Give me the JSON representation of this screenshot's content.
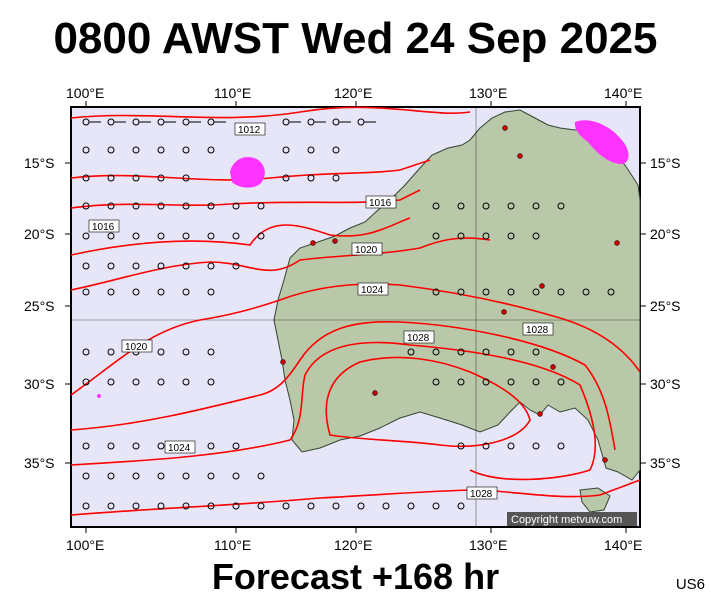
{
  "title": "0800 AWST Wed 24 Sep 2025",
  "subtitle": "Forecast +168 hr",
  "corner_code": "US6",
  "copyright": "Copyright metvuw.com",
  "x_ticks_top": [
    "100°E",
    "110°E",
    "120°E",
    "130°E",
    "140°E"
  ],
  "x_ticks_bottom": [
    "100°E",
    "110°E",
    "120°E",
    "130°E",
    "140°E"
  ],
  "y_ticks_left": [
    "15°S",
    "20°S",
    "25°S",
    "30°S",
    "35°S"
  ],
  "y_ticks_right": [
    "15°S",
    "20°S",
    "25°S",
    "30°S",
    "35°S"
  ],
  "isobar_labels": [
    "1012",
    "1016",
    "1016",
    "1020",
    "1020",
    "1024",
    "1024",
    "1028",
    "1028",
    "1028"
  ],
  "colors": {
    "ocean": "#e6e6f8",
    "land": "#b9c8a8",
    "isobar": "#ff0000",
    "rain": "#ff33ff",
    "frame": "#000000"
  }
}
